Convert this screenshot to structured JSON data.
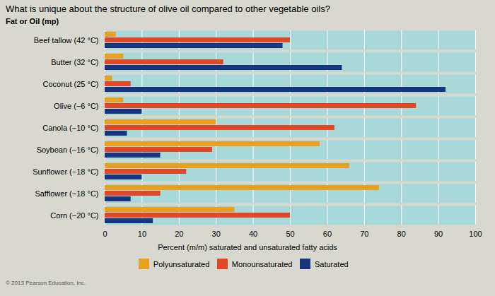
{
  "chart_data": {
    "type": "bar",
    "orientation": "horizontal",
    "title": "What is unique about the structure of olive oil compared to other vegetable oils?",
    "xlabel": "Percent (m/m) saturated and unsaturated fatty acids",
    "ylabel": "Fat or Oil (mp)",
    "categories": [
      "Beef tallow (42 °C)",
      "Butter (32 °C)",
      "Coconut (25 °C)",
      "Olive (−6 °C)",
      "Canola (−10 °C)",
      "Soybean (−16 °C)",
      "Sunflower (−18 °C)",
      "Safflower (−18 °C)",
      "Corn (−20 °C)"
    ],
    "series": [
      {
        "name": "Polyunsaturated",
        "color": "#E8A020",
        "values": [
          3,
          5,
          2,
          5,
          30,
          58,
          66,
          74,
          35
        ]
      },
      {
        "name": "Monounsaturated",
        "color": "#E04828",
        "values": [
          50,
          32,
          7,
          84,
          62,
          29,
          22,
          15,
          50
        ]
      },
      {
        "name": "Saturated",
        "color": "#1A3580",
        "values": [
          48,
          64,
          92,
          10,
          6,
          15,
          10,
          7,
          13
        ]
      }
    ],
    "xlim": [
      0,
      100
    ],
    "xticks": [
      0,
      10,
      20,
      30,
      40,
      50,
      60,
      70,
      80,
      90,
      100
    ],
    "grid": true,
    "legend": "bottom",
    "annotations": [
      "© 2013 Pearson Education, Inc."
    ]
  }
}
